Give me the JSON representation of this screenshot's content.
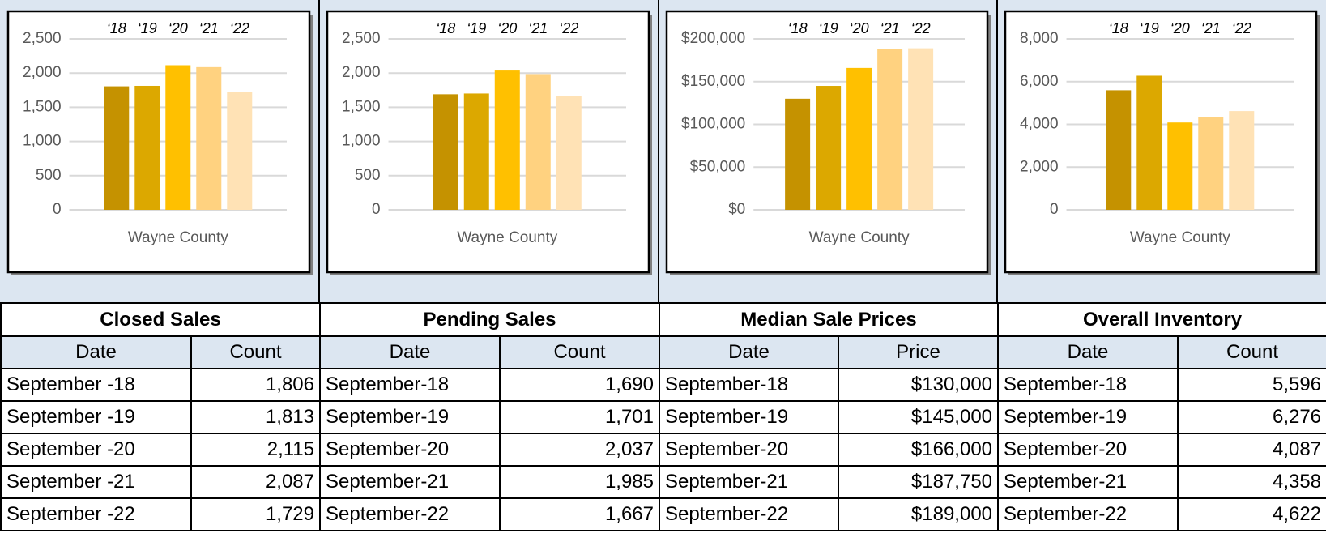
{
  "chart_data": [
    {
      "type": "bar",
      "categories": [
        "Wayne County"
      ],
      "ylim": [
        0,
        2500
      ],
      "yticks": [
        0,
        500,
        {
          "value": 1000,
          "label": "1,000"
        },
        {
          "value": 1500,
          "label": "1,500"
        },
        {
          "value": 2000,
          "label": "2,000"
        },
        {
          "value": 2500,
          "label": "2,500"
        }
      ],
      "grid": true,
      "legend": "top",
      "series": [
        {
          "name": "‘18",
          "color": "#c59200",
          "values": [
            1806
          ]
        },
        {
          "name": "‘19",
          "color": "#dca800",
          "values": [
            1813
          ]
        },
        {
          "name": "‘20",
          "color": "#ffc000",
          "values": [
            2115
          ]
        },
        {
          "name": "‘21",
          "color": "#ffd280",
          "values": [
            2087
          ]
        },
        {
          "name": "‘22",
          "color": "#ffe2b5",
          "values": [
            1729
          ]
        }
      ]
    },
    {
      "type": "bar",
      "categories": [
        "Wayne County"
      ],
      "ylim": [
        0,
        2500
      ],
      "yticks": [
        0,
        500,
        {
          "value": 1000,
          "label": "1,000"
        },
        {
          "value": 1500,
          "label": "1,500"
        },
        {
          "value": 2000,
          "label": "2,000"
        },
        {
          "value": 2500,
          "label": "2,500"
        }
      ],
      "grid": true,
      "legend": "top",
      "series": [
        {
          "name": "‘18",
          "color": "#c59200",
          "values": [
            1690
          ]
        },
        {
          "name": "‘19",
          "color": "#dca800",
          "values": [
            1701
          ]
        },
        {
          "name": "‘20",
          "color": "#ffc000",
          "values": [
            2037
          ]
        },
        {
          "name": "‘21",
          "color": "#ffd280",
          "values": [
            1985
          ]
        },
        {
          "name": "‘22",
          "color": "#ffe2b5",
          "values": [
            1667
          ]
        }
      ]
    },
    {
      "type": "bar",
      "categories": [
        "Wayne County"
      ],
      "ylim": [
        0,
        200000
      ],
      "yticks": [
        {
          "value": 0,
          "label": "$0"
        },
        {
          "value": 50000,
          "label": "$50,000"
        },
        {
          "value": 100000,
          "label": "$100,000"
        },
        {
          "value": 150000,
          "label": "$150,000"
        },
        {
          "value": 200000,
          "label": "$200,000"
        }
      ],
      "grid": true,
      "legend": "top",
      "series": [
        {
          "name": "‘18",
          "color": "#c59200",
          "values": [
            130000
          ]
        },
        {
          "name": "‘19",
          "color": "#dca800",
          "values": [
            145000
          ]
        },
        {
          "name": "‘20",
          "color": "#ffc000",
          "values": [
            166000
          ]
        },
        {
          "name": "‘21",
          "color": "#ffd280",
          "values": [
            187750
          ]
        },
        {
          "name": "‘22",
          "color": "#ffe2b5",
          "values": [
            189000
          ]
        }
      ]
    },
    {
      "type": "bar",
      "categories": [
        "Wayne County"
      ],
      "ylim": [
        0,
        8000
      ],
      "yticks": [
        0,
        {
          "value": 2000,
          "label": "2,000"
        },
        {
          "value": 4000,
          "label": "4,000"
        },
        {
          "value": 6000,
          "label": "6,000"
        },
        {
          "value": 8000,
          "label": "8,000"
        }
      ],
      "grid": true,
      "legend": "top",
      "series": [
        {
          "name": "‘18",
          "color": "#c59200",
          "values": [
            5596
          ]
        },
        {
          "name": "‘19",
          "color": "#dca800",
          "values": [
            6276
          ]
        },
        {
          "name": "‘20",
          "color": "#ffc000",
          "values": [
            4087
          ]
        },
        {
          "name": "‘21",
          "color": "#ffd280",
          "values": [
            4358
          ]
        },
        {
          "name": "‘22",
          "color": "#ffe2b5",
          "values": [
            4622
          ]
        }
      ]
    }
  ],
  "tables": [
    {
      "title": "Closed Sales",
      "header": [
        "Date",
        "Count"
      ],
      "rows": [
        [
          "September -18",
          "1,806"
        ],
        [
          "September -19",
          "1,813"
        ],
        [
          "September -20",
          "2,115"
        ],
        [
          "September -21",
          "2,087"
        ],
        [
          "September -22",
          "1,729"
        ]
      ]
    },
    {
      "title": "Pending Sales",
      "header": [
        "Date",
        "Count"
      ],
      "rows": [
        [
          "September-18",
          "1,690"
        ],
        [
          "September-19",
          "1,701"
        ],
        [
          "September-20",
          "2,037"
        ],
        [
          "September-21",
          "1,985"
        ],
        [
          "September-22",
          "1,667"
        ]
      ]
    },
    {
      "title": "Median Sale Prices",
      "header": [
        "Date",
        "Price"
      ],
      "rows": [
        [
          "September-18",
          "$130,000"
        ],
        [
          "September-19",
          "$145,000"
        ],
        [
          "September-20",
          "$166,000"
        ],
        [
          "September-21",
          "$187,750"
        ],
        [
          "September-22",
          "$189,000"
        ]
      ]
    },
    {
      "title": "Overall Inventory",
      "header": [
        "Date",
        "Count"
      ],
      "rows": [
        [
          "September-18",
          "5,596"
        ],
        [
          "September-19",
          "6,276"
        ],
        [
          "September-20",
          "4,087"
        ],
        [
          "September-21",
          "4,358"
        ],
        [
          "September-22",
          "4,622"
        ]
      ]
    }
  ]
}
